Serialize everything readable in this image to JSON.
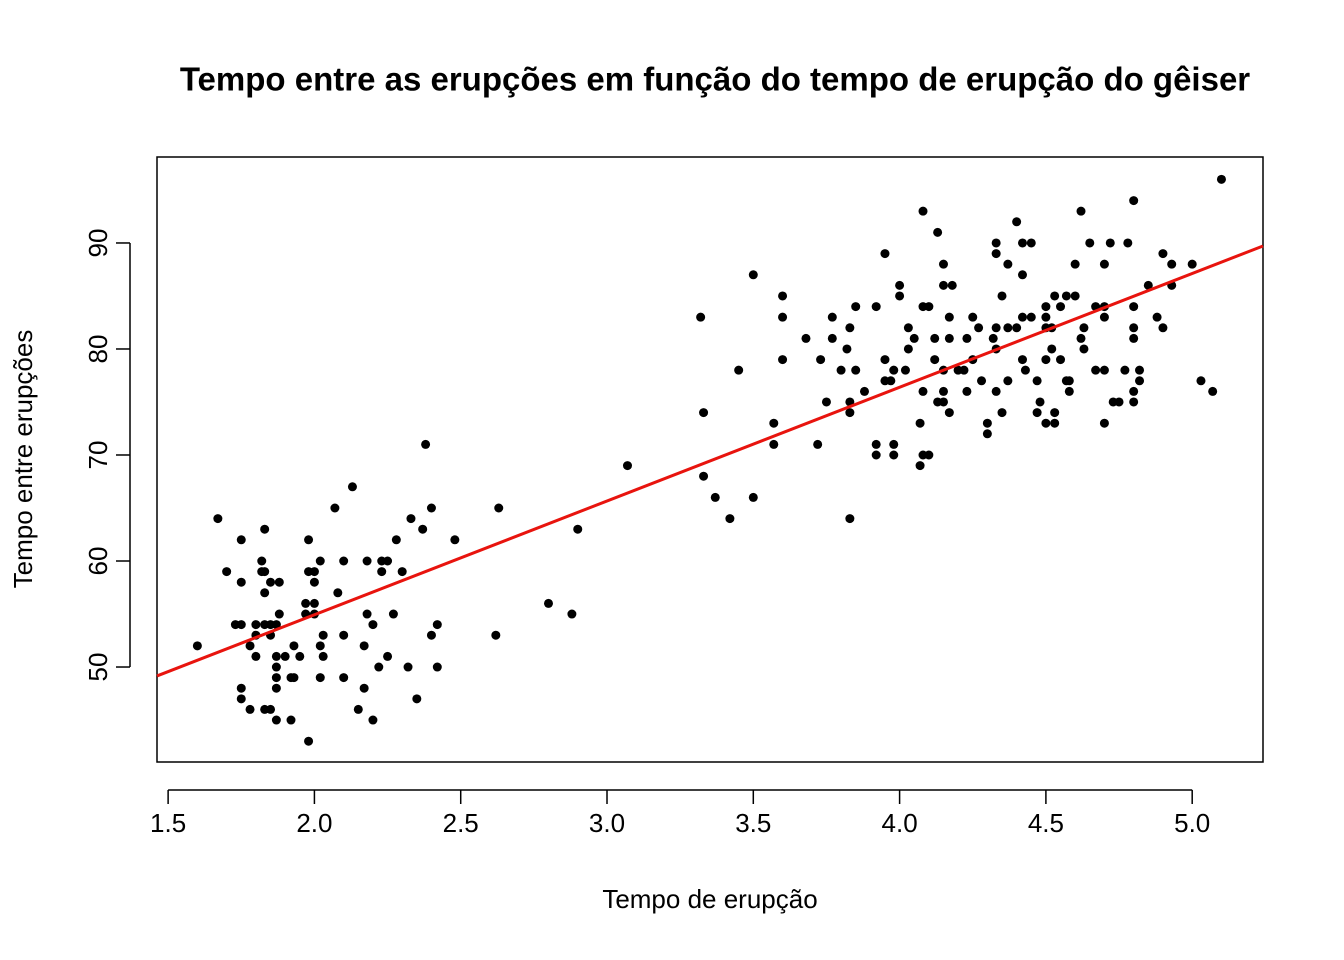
{
  "chart_data": {
    "type": "scatter",
    "title": "Tempo entre as erupções em função do tempo de erupção do gêiser",
    "x_label": "Tempo de erupção",
    "y_label": "Tempo entre erupções",
    "color": "#000000",
    "xlim": [
      1.462,
      5.242
    ],
    "ylim": [
      41.04,
      98.11
    ],
    "xticks": [
      1.5,
      {
        "value": 2,
        "label": "2.0"
      },
      2.5,
      {
        "value": 3,
        "label": "3.0"
      },
      3.5,
      {
        "value": 4,
        "label": "4.0"
      },
      4.5,
      {
        "value": 5,
        "label": "5.0"
      }
    ],
    "yticks": [
      50,
      60,
      70,
      80,
      90
    ],
    "fit": {
      "intercept": 33.47,
      "slope": 10.73,
      "color": "#e8140e"
    },
    "x": [
      1.6,
      1.67,
      1.7,
      1.73,
      1.75,
      1.75,
      1.75,
      1.75,
      1.75,
      1.78,
      1.78,
      1.8,
      1.8,
      1.8,
      1.82,
      1.82,
      1.83,
      1.83,
      1.83,
      1.83,
      1.83,
      1.85,
      1.85,
      1.85,
      1.85,
      1.87,
      1.87,
      1.87,
      1.87,
      1.87,
      1.87,
      1.88,
      1.88,
      1.9,
      1.92,
      1.92,
      1.93,
      1.93,
      1.95,
      1.97,
      1.97,
      1.98,
      1.98,
      1.98,
      2.0,
      2.0,
      2.0,
      2.0,
      2.02,
      2.02,
      2.02,
      2.03,
      2.03,
      2.07,
      2.08,
      2.1,
      2.1,
      2.1,
      2.13,
      2.15,
      2.17,
      2.17,
      2.18,
      2.18,
      2.2,
      2.2,
      2.22,
      2.23,
      2.23,
      2.25,
      2.25,
      2.27,
      2.28,
      2.3,
      2.32,
      2.33,
      2.35,
      2.37,
      2.38,
      2.4,
      2.4,
      2.42,
      2.42,
      2.48,
      2.62,
      2.63,
      2.8,
      2.88,
      2.9,
      3.07,
      3.32,
      3.33,
      3.33,
      3.37,
      3.42,
      3.45,
      3.5,
      3.5,
      3.57,
      3.57,
      3.6,
      3.6,
      3.6,
      3.68,
      3.72,
      3.73,
      3.75,
      3.77,
      3.77,
      3.8,
      3.82,
      3.83,
      3.83,
      3.83,
      3.83,
      3.85,
      3.85,
      3.88,
      3.92,
      3.92,
      3.92,
      3.95,
      3.95,
      3.95,
      3.97,
      3.98,
      3.98,
      3.98,
      4.0,
      4.0,
      4.02,
      4.03,
      4.03,
      4.05,
      4.07,
      4.07,
      4.08,
      4.08,
      4.08,
      4.08,
      4.1,
      4.1,
      4.12,
      4.12,
      4.13,
      4.13,
      4.15,
      4.15,
      4.15,
      4.15,
      4.15,
      4.17,
      4.17,
      4.17,
      4.18,
      4.2,
      4.22,
      4.23,
      4.23,
      4.25,
      4.25,
      4.27,
      4.28,
      4.3,
      4.3,
      4.32,
      4.33,
      4.33,
      4.33,
      4.33,
      4.33,
      4.35,
      4.35,
      4.37,
      4.37,
      4.37,
      4.4,
      4.4,
      4.42,
      4.42,
      4.42,
      4.42,
      4.43,
      4.45,
      4.45,
      4.47,
      4.47,
      4.48,
      4.5,
      4.5,
      4.5,
      4.5,
      4.5,
      4.52,
      4.52,
      4.53,
      4.53,
      4.53,
      4.55,
      4.55,
      4.57,
      4.57,
      4.58,
      4.58,
      4.6,
      4.6,
      4.62,
      4.62,
      4.63,
      4.63,
      4.65,
      4.67,
      4.67,
      4.7,
      4.7,
      4.7,
      4.7,
      4.7,
      4.72,
      4.73,
      4.75,
      4.77,
      4.78,
      4.8,
      4.8,
      4.8,
      4.8,
      4.8,
      4.8,
      4.82,
      4.82,
      4.85,
      4.88,
      4.9,
      4.9,
      4.93,
      4.93,
      5.0,
      5.03,
      5.07,
      5.1
    ],
    "y": [
      52,
      64,
      59,
      54,
      62,
      58,
      54,
      48,
      47,
      52,
      46,
      51,
      54,
      53,
      60,
      59,
      46,
      63,
      57,
      59,
      54,
      46,
      58,
      54,
      53,
      51,
      50,
      49,
      48,
      45,
      54,
      55,
      58,
      51,
      49,
      45,
      52,
      49,
      51,
      56,
      55,
      62,
      43,
      59,
      59,
      58,
      56,
      55,
      60,
      52,
      49,
      51,
      53,
      65,
      57,
      60,
      53,
      49,
      67,
      46,
      48,
      52,
      55,
      60,
      54,
      45,
      50,
      60,
      59,
      60,
      51,
      55,
      62,
      59,
      50,
      64,
      47,
      63,
      71,
      65,
      53,
      54,
      50,
      62,
      53,
      65,
      56,
      55,
      63,
      69,
      83,
      74,
      68,
      66,
      64,
      78,
      87,
      66,
      73,
      71,
      85,
      83,
      79,
      81,
      71,
      79,
      75,
      83,
      81,
      78,
      80,
      82,
      75,
      74,
      64,
      78,
      84,
      76,
      84,
      71,
      70,
      79,
      89,
      77,
      77,
      78,
      71,
      70,
      86,
      85,
      78,
      82,
      80,
      81,
      73,
      69,
      93,
      84,
      76,
      70,
      70,
      84,
      79,
      81,
      91,
      75,
      88,
      86,
      78,
      76,
      75,
      83,
      81,
      74,
      86,
      78,
      78,
      81,
      76,
      83,
      79,
      82,
      77,
      73,
      72,
      81,
      90,
      89,
      82,
      80,
      76,
      85,
      74,
      88,
      82,
      77,
      92,
      82,
      90,
      87,
      83,
      79,
      78,
      90,
      83,
      77,
      74,
      75,
      84,
      83,
      82,
      79,
      73,
      80,
      82,
      85,
      74,
      73,
      84,
      79,
      77,
      85,
      77,
      76,
      85,
      88,
      93,
      81,
      82,
      80,
      90,
      84,
      78,
      84,
      83,
      88,
      78,
      73,
      90,
      75,
      75,
      78,
      90,
      94,
      84,
      82,
      81,
      76,
      75,
      77,
      78,
      86,
      83,
      89,
      82,
      88,
      86,
      88,
      77,
      76,
      96
    ]
  }
}
